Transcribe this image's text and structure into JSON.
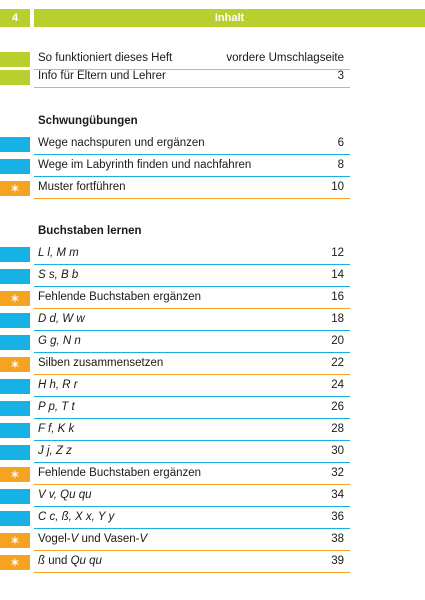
{
  "header": {
    "page_number": "4",
    "title": "Inhalt"
  },
  "colors": {
    "green": "#b9cf2d",
    "blue": "#16b2e6",
    "orange": "#f6a322"
  },
  "intro": [
    {
      "label": "So funktioniert dieses Heft",
      "page": "vordere Umschlagseite"
    },
    {
      "label": "Info für Eltern und Lehrer",
      "page": "3"
    }
  ],
  "schwung": {
    "heading": "Schwungübungen",
    "items": [
      {
        "label": "Wege nachspuren und ergänzen",
        "page": "6"
      },
      {
        "label": "Wege im Labyrinth finden und nachfahren",
        "page": "8"
      },
      {
        "label": "Muster fortführen",
        "page": "10"
      }
    ]
  },
  "buchstaben": {
    "heading": "Buchstaben lernen",
    "items": [
      {
        "label": "L l, M m",
        "page": "12"
      },
      {
        "label": "S s, B b",
        "page": "14"
      },
      {
        "label": "Fehlende Buchstaben ergänzen",
        "page": "16"
      },
      {
        "label": "D d, W w",
        "page": "18"
      },
      {
        "label": "G g, N n",
        "page": "20"
      },
      {
        "label": "Silben zusammensetzen",
        "page": "22"
      },
      {
        "label": "H h, R r",
        "page": "24"
      },
      {
        "label": "P p, T t",
        "page": "26"
      },
      {
        "label": "F f, K k",
        "page": "28"
      },
      {
        "label": "J j, Z z",
        "page": "30"
      },
      {
        "label": "Fehlende Buchstaben ergänzen",
        "page": "32"
      },
      {
        "label": "V v, Qu qu",
        "page": "34"
      },
      {
        "label": "C c, ß, X x, Y y",
        "page": "36"
      },
      {
        "label_parts": [
          "Vogel-",
          "V",
          " und Vasen-",
          "V"
        ],
        "page": "38"
      },
      {
        "label_parts": [
          "ß",
          " und ",
          "Qu qu"
        ],
        "page": "39"
      }
    ]
  },
  "icons": {
    "exercise": "star-icon",
    "star_glyph": "✶"
  }
}
